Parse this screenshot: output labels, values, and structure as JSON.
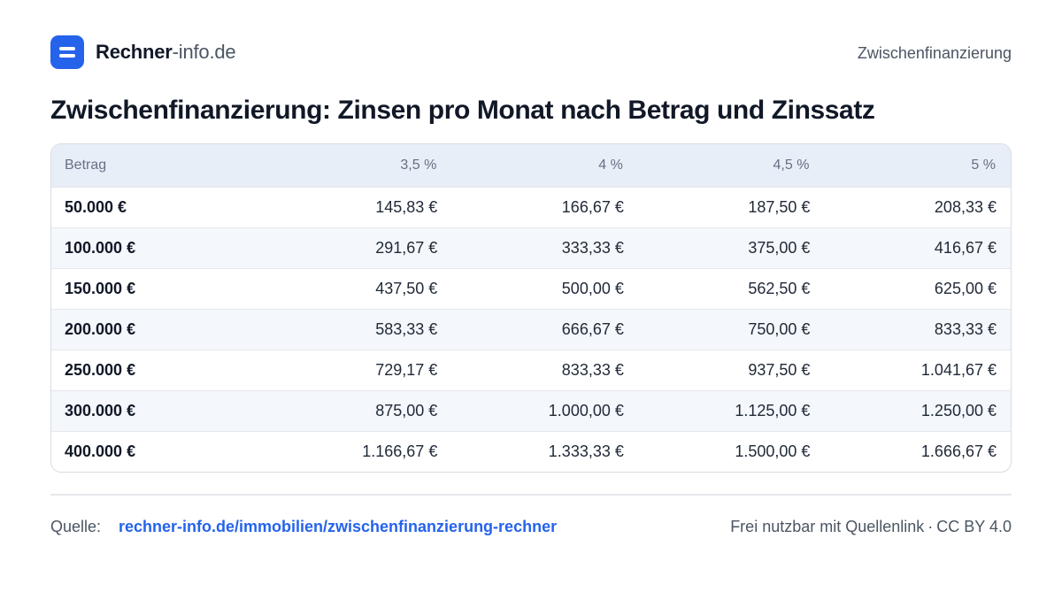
{
  "brand": {
    "name_bold": "Rechner",
    "name_light": "-info.de"
  },
  "header_right": "Zwischenfinanzierung",
  "title": "Zwischenfinanzierung: Zinsen pro Monat nach Betrag und Zinssatz",
  "table": {
    "headers": [
      "Betrag",
      "3,5 %",
      "4 %",
      "4,5 %",
      "5 %"
    ],
    "rows": [
      [
        "50.000 €",
        "145,83 €",
        "166,67 €",
        "187,50 €",
        "208,33 €"
      ],
      [
        "100.000 €",
        "291,67 €",
        "333,33 €",
        "375,00 €",
        "416,67 €"
      ],
      [
        "150.000 €",
        "437,50 €",
        "500,00 €",
        "562,50 €",
        "625,00 €"
      ],
      [
        "200.000 €",
        "583,33 €",
        "666,67 €",
        "750,00 €",
        "833,33 €"
      ],
      [
        "250.000 €",
        "729,17 €",
        "833,33 €",
        "937,50 €",
        "1.041,67 €"
      ],
      [
        "300.000 €",
        "875,00 €",
        "1.000,00 €",
        "1.125,00 €",
        "1.250,00 €"
      ],
      [
        "400.000 €",
        "1.166,67 €",
        "1.333,33 €",
        "1.500,00 €",
        "1.666,67 €"
      ]
    ]
  },
  "footer": {
    "source_label": "Quelle:",
    "source_link": "rechner-info.de/immobilien/zwischenfinanzierung-rechner",
    "license_text": "Frei nutzbar mit Quellenlink",
    "separator": "·",
    "license": "CC BY 4.0"
  },
  "colors": {
    "accent": "#2563eb",
    "header_bg": "#e8eef7",
    "alt_row_bg": "#f4f7fb",
    "border": "#d7dce3"
  },
  "icons": {
    "logo": "calculator-logo-icon"
  }
}
